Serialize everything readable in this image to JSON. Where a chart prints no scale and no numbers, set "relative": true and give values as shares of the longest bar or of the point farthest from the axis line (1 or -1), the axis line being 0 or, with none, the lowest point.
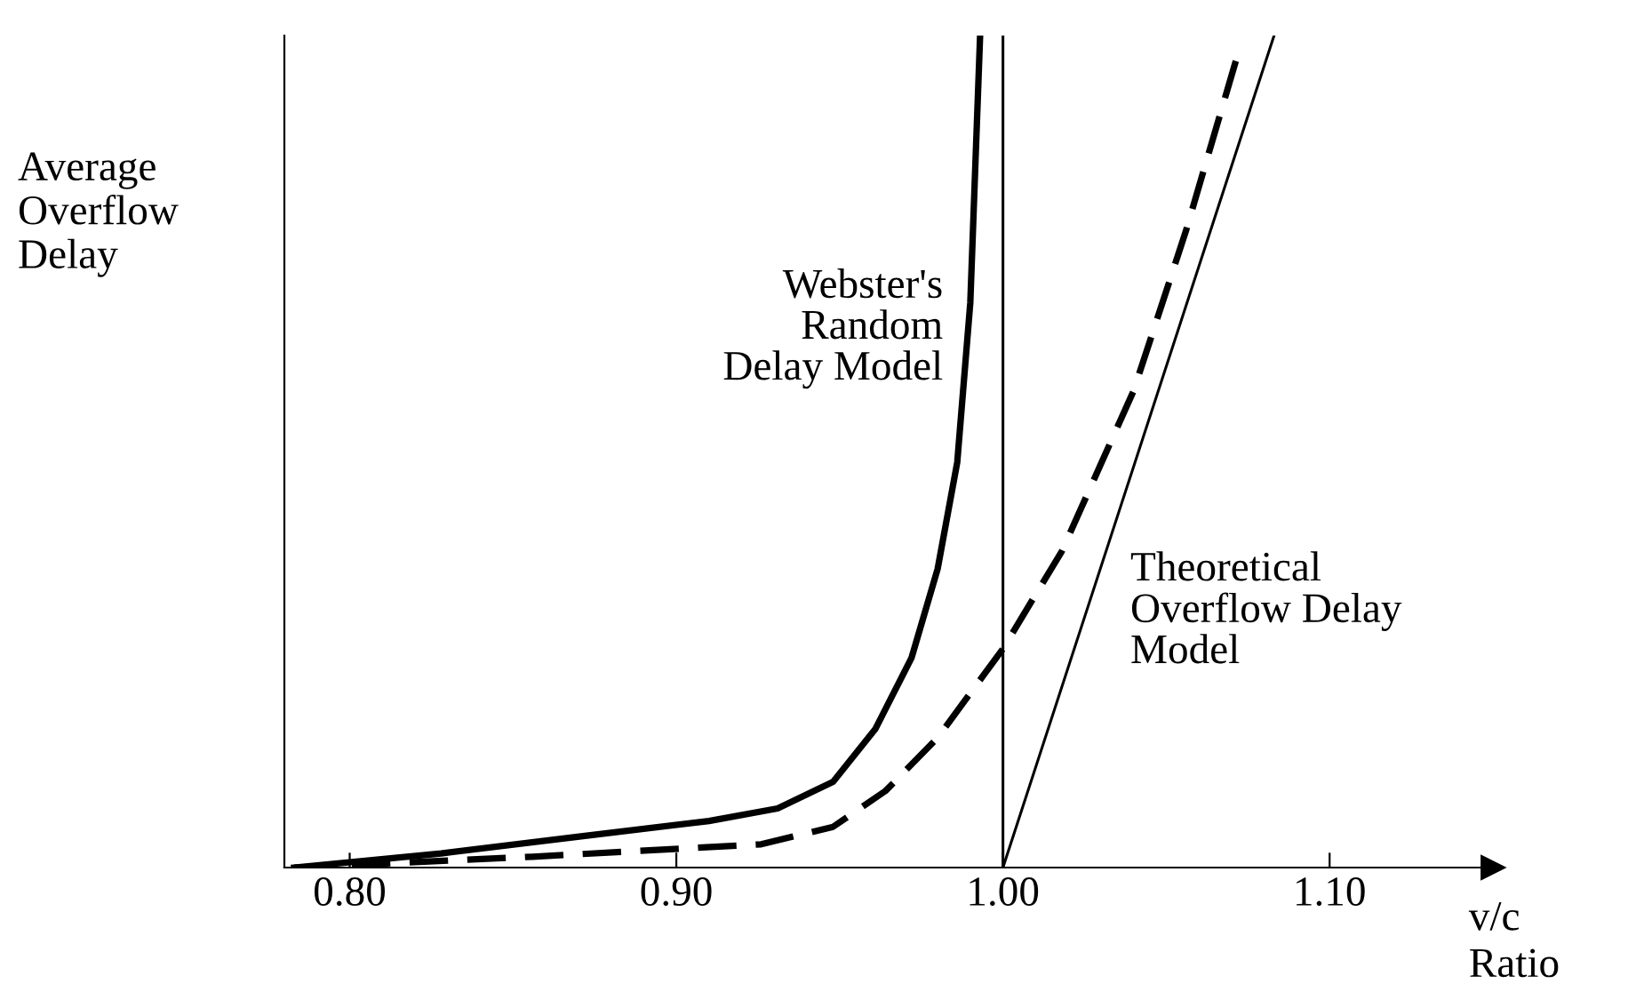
{
  "chart_data": {
    "type": "line",
    "relative": true,
    "ylabel": "Average\nOverflow\nDelay",
    "xlabel": "v/c\nRatio",
    "xlim": [
      0.78,
      1.15
    ],
    "xticks": [
      {
        "value": 0.8,
        "label": "0.80"
      },
      {
        "value": 0.9,
        "label": "0.90"
      },
      {
        "value": 1.0,
        "label": "1.00"
      },
      {
        "value": 1.1,
        "label": "1.10"
      }
    ],
    "grid": false,
    "legend": false,
    "ref_lines": [
      {
        "axis": "x",
        "value": 1.0,
        "label": null,
        "color": "#000000"
      }
    ],
    "series": [
      {
        "name": "Webster's\nRandom\nDelay Model",
        "color": "#000000",
        "line_style": "solid",
        "x": [
          0.783,
          0.828,
          0.872,
          0.91,
          0.931,
          0.948,
          0.961,
          0.972,
          0.98,
          0.986,
          0.99,
          0.993
        ],
        "values": [
          0,
          0.017,
          0.038,
          0.056,
          0.071,
          0.103,
          0.167,
          0.252,
          0.359,
          0.487,
          0.679,
          1.0
        ]
      },
      {
        "color": "#000000",
        "line_style": "dashed",
        "x": [
          0.783,
          0.856,
          0.926,
          0.948,
          0.964,
          0.98,
          1.0,
          1.018,
          1.04,
          1.056,
          1.072
        ],
        "values": [
          0,
          0.013,
          0.028,
          0.049,
          0.092,
          0.156,
          0.263,
          0.38,
          0.573,
          0.765,
          0.979
        ]
      },
      {
        "name": "Theoretical\nOverflow Delay\nModel",
        "color": "#000000",
        "line_style": "solid",
        "x": [
          1.0,
          1.083
        ],
        "values": [
          0,
          1.0
        ]
      }
    ]
  }
}
